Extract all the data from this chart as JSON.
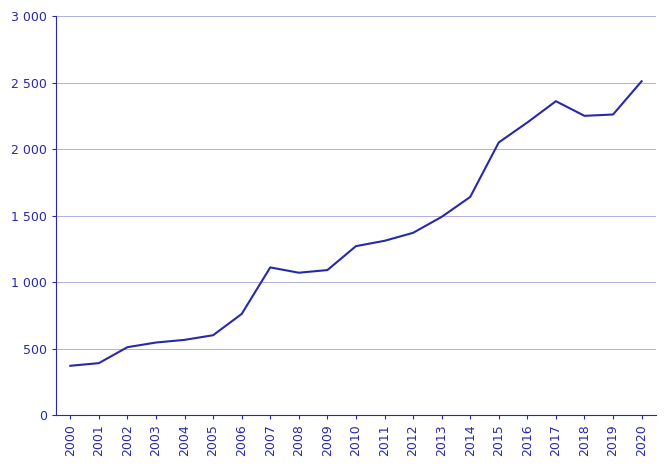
{
  "years": [
    2000,
    2001,
    2002,
    2003,
    2004,
    2005,
    2006,
    2007,
    2008,
    2009,
    2010,
    2011,
    2012,
    2013,
    2014,
    2015,
    2016,
    2017,
    2018,
    2019,
    2020
  ],
  "data_values": [
    370,
    390,
    510,
    545,
    565,
    600,
    760,
    1110,
    1070,
    1090,
    1270,
    1310,
    1370,
    1490,
    1640,
    2050,
    2200,
    2360,
    2250,
    2260,
    2510
  ],
  "line_color": "#2828aa",
  "background_color": "#ffffff",
  "grid_color": "#b0b0dd",
  "tick_color": "#2828aa",
  "axis_color": "#2828aa",
  "ylim": [
    0,
    3000
  ],
  "yticks": [
    0,
    500,
    1000,
    1500,
    2000,
    2500,
    3000
  ],
  "ytick_labels": [
    "0",
    "500",
    "1 000",
    "1 500",
    "2 000",
    "2 500",
    "3 000"
  ],
  "font_size": 9
}
